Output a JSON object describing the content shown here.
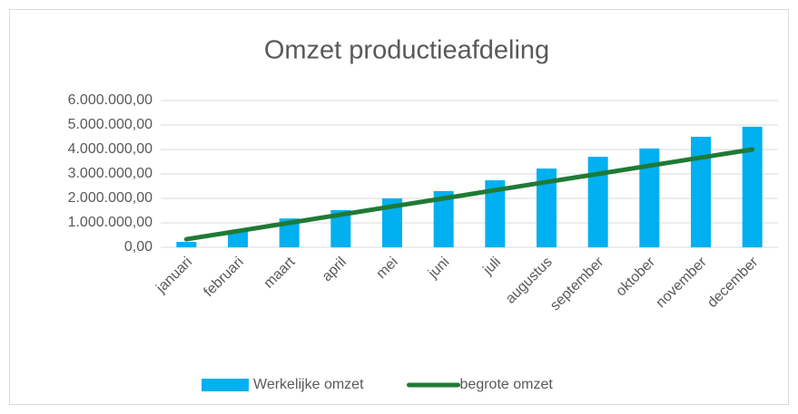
{
  "chart_data": {
    "type": "bar_line",
    "title": "Omzet productieafdeling",
    "categories": [
      "januari",
      "februari",
      "maart",
      "april",
      "mei",
      "juni",
      "juli",
      "augustus",
      "september",
      "oktober",
      "november",
      "december"
    ],
    "series": [
      {
        "name": "Werkelijke omzet",
        "type": "bar",
        "color": "#00b0f0",
        "values": [
          220000,
          650000,
          1180000,
          1520000,
          2000000,
          2300000,
          2740000,
          3220000,
          3700000,
          4040000,
          4520000,
          4930000
        ]
      },
      {
        "name": "begrote omzet",
        "type": "line",
        "color": "#1f7a35",
        "values": [
          330000,
          665000,
          1000000,
          1335000,
          1670000,
          2000000,
          2335000,
          2670000,
          3000000,
          3335000,
          3670000,
          4000000
        ]
      }
    ],
    "ylim": [
      0,
      6000000
    ],
    "yticks": [
      {
        "value": 0,
        "label": "0,00"
      },
      {
        "value": 1000000,
        "label": "1.000.000,00"
      },
      {
        "value": 2000000,
        "label": "2.000.000,00"
      },
      {
        "value": 3000000,
        "label": "3.000.000,00"
      },
      {
        "value": 4000000,
        "label": "4.000.000,00"
      },
      {
        "value": 5000000,
        "label": "5.000.000,00"
      },
      {
        "value": 6000000,
        "label": "6.000.000,00"
      }
    ],
    "grid": true,
    "legend": "bottom"
  }
}
